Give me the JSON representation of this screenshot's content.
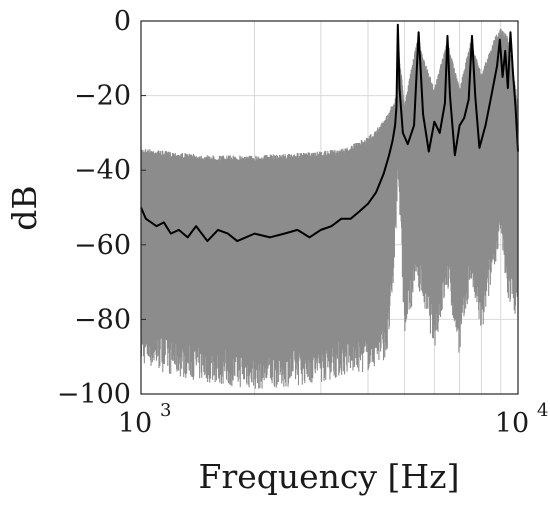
{
  "chart_data": {
    "type": "line",
    "title": "",
    "xlabel": "Frequency [Hz]",
    "ylabel": "dB",
    "xscale": "log",
    "xlim": [
      1000,
      10000
    ],
    "ylim": [
      -100,
      0
    ],
    "grid": true,
    "x_tick_labels": [
      {
        "value": 1000,
        "base": "10",
        "exp": "3"
      },
      {
        "value": 10000,
        "base": "10",
        "exp": "4"
      }
    ],
    "y_ticks": [
      0,
      -20,
      -40,
      -60,
      -80,
      -100
    ],
    "y_tick_labels": [
      "0",
      "−20",
      "−40",
      "−60",
      "−80",
      "−100"
    ],
    "series": [
      {
        "role": "ensemble",
        "color": "#8c8c8c",
        "description_values": "band of many individual spectra",
        "x": [
          1000,
          1200,
          1500,
          2000,
          2500,
          3000,
          3500,
          4000,
          4300,
          4500,
          4650,
          4760,
          4800,
          5000,
          5400,
          6000,
          6500,
          7000,
          7500,
          8000,
          8700,
          9000,
          9400,
          10000
        ],
        "upper": [
          -34,
          -35,
          -36,
          -36,
          -35.5,
          -35,
          -34,
          -31,
          -28,
          -25,
          -22,
          -20,
          -5,
          -22,
          -5,
          -18,
          -5,
          -18,
          -5,
          -14,
          -4,
          -2,
          -4,
          -22
        ],
        "lower": [
          -92,
          -95,
          -97,
          -99,
          -98,
          -97,
          -95,
          -94,
          -92,
          -90,
          -75,
          -55,
          -40,
          -85,
          -70,
          -88,
          -72,
          -90,
          -70,
          -85,
          -65,
          -60,
          -75,
          -80
        ]
      },
      {
        "role": "mean",
        "color": "#000000",
        "x": [
          1000,
          1030,
          1100,
          1150,
          1200,
          1260,
          1330,
          1400,
          1500,
          1600,
          1700,
          1800,
          2000,
          2200,
          2400,
          2600,
          2800,
          3000,
          3200,
          3400,
          3600,
          3800,
          4000,
          4200,
          4400,
          4550,
          4650,
          4720,
          4760,
          4800,
          4850,
          4950,
          5100,
          5300,
          5450,
          5600,
          5800,
          6000,
          6200,
          6400,
          6500,
          6600,
          6800,
          7000,
          7200,
          7400,
          7550,
          7700,
          7900,
          8200,
          8500,
          8800,
          8950,
          9100,
          9250,
          9400,
          9550,
          9700,
          9850,
          10000
        ],
        "y": [
          -50,
          -53,
          -55,
          -54,
          -57,
          -56,
          -58,
          -55,
          -59,
          -56,
          -57,
          -59,
          -57,
          -58,
          -57,
          -56,
          -58,
          -56,
          -55,
          -53,
          -53,
          -51,
          -49,
          -46,
          -41,
          -36,
          -32,
          -28,
          -23,
          -1,
          -18,
          -30,
          -33,
          -28,
          -3,
          -25,
          -35,
          -27,
          -30,
          -22,
          -4,
          -20,
          -36,
          -28,
          -26,
          -21,
          -4,
          -20,
          -34,
          -28,
          -20,
          -12,
          -5,
          -15,
          -8,
          -18,
          -3,
          -14,
          -23,
          -35
        ]
      }
    ]
  }
}
